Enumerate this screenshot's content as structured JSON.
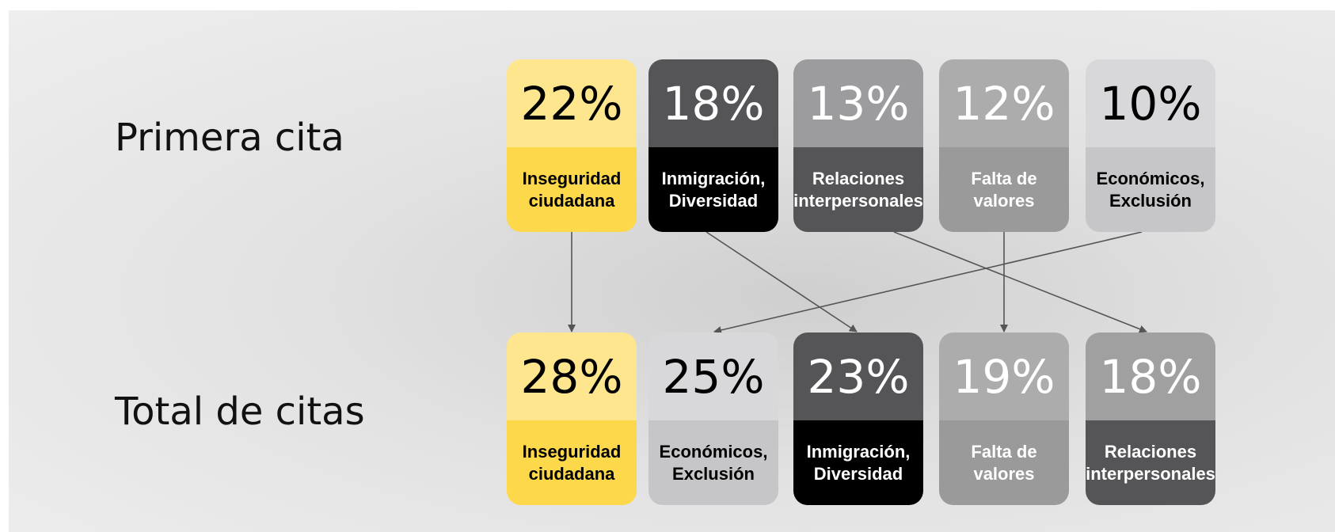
{
  "rows": [
    {
      "label": "Primera cita",
      "cards": [
        {
          "value": "22%",
          "label": "Inseguridad\nciudadana"
        },
        {
          "value": "18%",
          "label": "Inmigración,\nDiversidad"
        },
        {
          "value": "13%",
          "label": "Relaciones\ninterpersonales"
        },
        {
          "value": "12%",
          "label": "Falta de\nvalores"
        },
        {
          "value": "10%",
          "label": "Económicos,\nExclusión"
        }
      ]
    },
    {
      "label": "Total de citas",
      "cards": [
        {
          "value": "28%",
          "label": "Inseguridad\nciudadana"
        },
        {
          "value": "25%",
          "label": "Económicos,\nExclusión"
        },
        {
          "value": "23%",
          "label": "Inmigración,\nDiversidad"
        },
        {
          "value": "19%",
          "label": "Falta de\nvalores"
        },
        {
          "value": "18%",
          "label": "Relaciones\ninterpersonales"
        }
      ]
    }
  ]
}
